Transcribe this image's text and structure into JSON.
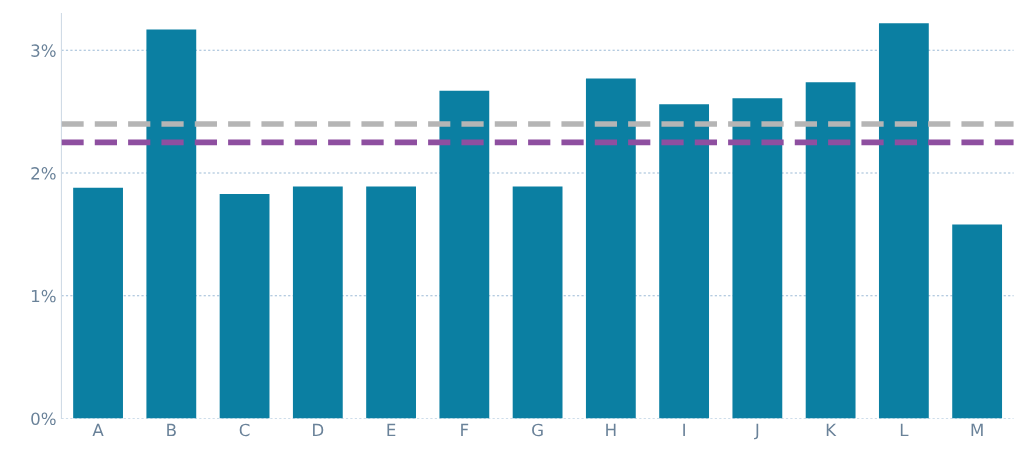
{
  "chart_data": {
    "type": "bar",
    "categories": [
      "A",
      "B",
      "C",
      "D",
      "E",
      "F",
      "G",
      "H",
      "I",
      "J",
      "K",
      "L",
      "M"
    ],
    "values": [
      1.88,
      3.17,
      1.83,
      1.89,
      1.89,
      2.67,
      1.89,
      2.77,
      2.56,
      2.61,
      2.74,
      3.22,
      1.58
    ],
    "color": "#0b7fa2",
    "ylim": [
      0,
      3.3
    ],
    "yticks": [
      {
        "value": 0,
        "label": "0%"
      },
      {
        "value": 1,
        "label": "1%"
      },
      {
        "value": 2,
        "label": "2%"
      },
      {
        "value": 3,
        "label": "3%"
      }
    ],
    "grid": "y",
    "ref_lines": [
      {
        "axis": "y",
        "value": 2.4,
        "color": "#b5b5b5",
        "line_style": "dashed"
      },
      {
        "axis": "y",
        "value": 2.25,
        "color": "#8e4fa0",
        "line_style": "dashed"
      }
    ]
  }
}
